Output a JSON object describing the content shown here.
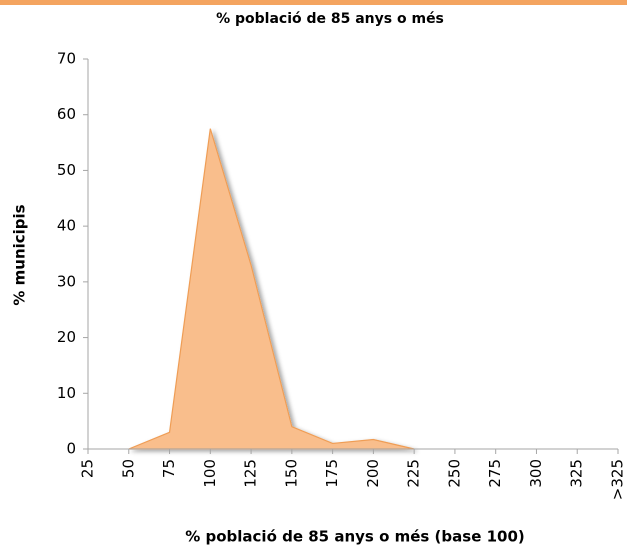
{
  "chart_data": {
    "type": "area",
    "title": "% població de 85 anys o més",
    "x_label": "% població de 85 anys o més (base 100)",
    "y_label": "% municipis",
    "categories": [
      "25",
      "50",
      "75",
      "100",
      "125",
      "150",
      "175",
      "200",
      "225",
      "250",
      "275",
      "300",
      "325",
      ">325"
    ],
    "values": [
      null,
      0,
      3,
      57.5,
      33,
      4,
      1,
      1.7,
      0,
      null,
      null,
      null,
      null,
      null
    ],
    "color": "#f9be8c",
    "line_color": "#ef9d55",
    "ylim": [
      0,
      70
    ],
    "yticks": [
      0,
      10,
      20,
      30,
      40,
      50,
      60,
      70
    ],
    "grid": false
  }
}
